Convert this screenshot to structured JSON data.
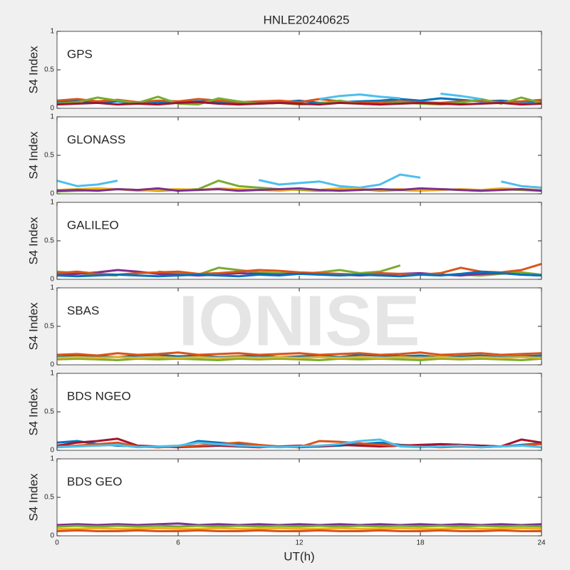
{
  "title": "HNLE20240625",
  "watermark": "IONISE",
  "chart_data": [
    {
      "type": "line",
      "label": "GPS",
      "ylabel": "S4 Index",
      "xlim": [
        0,
        24
      ],
      "xticks": [
        0,
        6,
        12,
        18,
        24
      ],
      "ylim": [
        0,
        1
      ],
      "yticks": [
        0,
        0.5,
        1
      ],
      "x": [
        0,
        1,
        2,
        3,
        4,
        5,
        6,
        7,
        8,
        9,
        10,
        11,
        12,
        13,
        14,
        15,
        16,
        17,
        18,
        19,
        20,
        21,
        22,
        23,
        24
      ],
      "series": [
        {
          "name": "s1",
          "color": "#0072BD",
          "values": [
            0.08,
            0.1,
            0.07,
            0.09,
            0.06,
            0.08,
            0.07,
            0.09,
            0.08,
            0.06,
            0.07,
            0.08,
            0.1,
            0.07,
            0.08,
            0.09,
            0.1,
            0.12,
            0.1,
            0.13,
            0.11,
            0.09,
            0.1,
            0.08,
            0.09
          ]
        },
        {
          "name": "s2",
          "color": "#D95319",
          "values": [
            0.1,
            0.12,
            0.09,
            0.11,
            0.08,
            0.1,
            0.09,
            0.12,
            0.1,
            0.08,
            0.09,
            0.1,
            0.08,
            0.12,
            0.09,
            0.07,
            0.08,
            0.09,
            0.08,
            0.07,
            0.09,
            0.1,
            0.08,
            0.09,
            0.11
          ]
        },
        {
          "name": "s3",
          "color": "#77AC30",
          "values": [
            0.06,
            0.08,
            0.14,
            0.1,
            0.07,
            0.15,
            0.06,
            0.05,
            0.13,
            0.09,
            0.06,
            0.07,
            0.05,
            0.06,
            0.1,
            0.06,
            0.05,
            0.08,
            0.06,
            0.05,
            0.07,
            0.12,
            0.06,
            0.14,
            0.07
          ]
        },
        {
          "name": "s4",
          "color": "#A2142F",
          "values": [
            0.05,
            0.06,
            0.07,
            0.05,
            0.06,
            0.05,
            0.07,
            0.08,
            0.06,
            0.05,
            0.06,
            0.07,
            0.06,
            0.05,
            0.07,
            0.06,
            0.05,
            0.06,
            0.07,
            0.06,
            0.05,
            0.06,
            0.07,
            0.05,
            0.06
          ]
        },
        {
          "name": "s5",
          "color": "#4DBEEE",
          "values": [
            null,
            null,
            null,
            null,
            null,
            null,
            null,
            null,
            null,
            null,
            null,
            null,
            null,
            0.12,
            0.16,
            0.18,
            0.15,
            0.13,
            null,
            0.19,
            0.16,
            0.12,
            null,
            null,
            null
          ]
        }
      ]
    },
    {
      "type": "line",
      "label": "GLONASS",
      "ylabel": "S4 Index",
      "xlim": [
        0,
        24
      ],
      "xticks": [
        0,
        6,
        12,
        18,
        24
      ],
      "ylim": [
        0,
        1
      ],
      "yticks": [
        0,
        0.5,
        1
      ],
      "x": [
        0,
        1,
        2,
        3,
        4,
        5,
        6,
        7,
        8,
        9,
        10,
        11,
        12,
        13,
        14,
        15,
        16,
        17,
        18,
        19,
        20,
        21,
        22,
        23,
        24
      ],
      "series": [
        {
          "name": "s1",
          "color": "#4DBEEE",
          "values": [
            0.17,
            0.1,
            0.12,
            0.17,
            null,
            null,
            null,
            null,
            null,
            null,
            0.18,
            0.12,
            0.14,
            0.16,
            0.1,
            0.08,
            0.12,
            0.25,
            0.21,
            null,
            null,
            null,
            0.16,
            0.1,
            0.08
          ]
        },
        {
          "name": "s2",
          "color": "#77AC30",
          "values": [
            0.03,
            0.04,
            0.05,
            0.06,
            0.05,
            0.04,
            0.05,
            0.06,
            0.17,
            0.1,
            0.08,
            0.06,
            0.05,
            0.04,
            0.05,
            0.06,
            0.04,
            0.05,
            0.04,
            0.06,
            0.05,
            0.04,
            0.06,
            0.05,
            0.04
          ]
        },
        {
          "name": "s3",
          "color": "#EDB120",
          "values": [
            0.05,
            0.06,
            0.07,
            0.06,
            0.04,
            0.05,
            0.06,
            0.05,
            0.07,
            0.06,
            0.05,
            0.04,
            0.06,
            0.05,
            0.07,
            0.06,
            0.05,
            0.06,
            0.04,
            0.05,
            0.06,
            0.05,
            0.07,
            0.06,
            0.05
          ]
        },
        {
          "name": "s4",
          "color": "#7E2F8E",
          "values": [
            0.04,
            0.05,
            0.04,
            0.06,
            0.05,
            0.07,
            0.04,
            0.05,
            0.06,
            0.04,
            0.05,
            0.06,
            0.07,
            0.05,
            0.04,
            0.05,
            0.06,
            0.05,
            0.07,
            0.06,
            0.05,
            0.04,
            0.05,
            0.06,
            0.04
          ]
        }
      ]
    },
    {
      "type": "line",
      "label": "GALILEO",
      "ylabel": "S4 Index",
      "xlim": [
        0,
        24
      ],
      "xticks": [
        0,
        6,
        12,
        18,
        24
      ],
      "ylim": [
        0,
        1
      ],
      "yticks": [
        0,
        0.5,
        1
      ],
      "x": [
        0,
        1,
        2,
        3,
        4,
        5,
        6,
        7,
        8,
        9,
        10,
        11,
        12,
        13,
        14,
        15,
        16,
        17,
        18,
        19,
        20,
        21,
        22,
        23,
        24
      ],
      "series": [
        {
          "name": "s1",
          "color": "#77AC30",
          "values": [
            0.1,
            0.08,
            0.06,
            0.05,
            null,
            0.1,
            0.08,
            0.06,
            0.15,
            0.12,
            0.09,
            0.08,
            0.07,
            0.09,
            0.12,
            0.08,
            0.1,
            0.18,
            null,
            null,
            0.06,
            0.05,
            0.07,
            0.09,
            0.06
          ]
        },
        {
          "name": "s2",
          "color": "#7E2F8E",
          "values": [
            0.06,
            0.07,
            0.09,
            0.12,
            0.1,
            0.07,
            0.06,
            0.05,
            0.06,
            0.08,
            0.07,
            0.06,
            0.08,
            0.07,
            0.06,
            0.05,
            0.06,
            0.07,
            0.08,
            0.06,
            0.05,
            0.07,
            0.08,
            0.06,
            0.05
          ]
        },
        {
          "name": "s3",
          "color": "#D95319",
          "values": [
            0.08,
            0.1,
            0.07,
            0.06,
            0.08,
            0.09,
            0.1,
            0.07,
            0.08,
            0.1,
            0.12,
            0.11,
            0.09,
            0.08,
            0.07,
            0.06,
            0.08,
            0.07,
            0.06,
            0.08,
            0.15,
            0.1,
            0.09,
            0.12,
            0.2
          ]
        },
        {
          "name": "s4",
          "color": "#0072BD",
          "values": [
            0.05,
            0.04,
            0.05,
            0.06,
            0.05,
            0.04,
            0.05,
            0.06,
            0.05,
            0.04,
            0.06,
            0.05,
            0.07,
            0.06,
            0.05,
            0.06,
            0.05,
            0.04,
            0.06,
            0.05,
            0.07,
            0.1,
            0.08,
            0.06,
            0.05
          ]
        }
      ]
    },
    {
      "type": "line",
      "label": "SBAS",
      "ylabel": "S4 Index",
      "xlim": [
        0,
        24
      ],
      "xticks": [
        0,
        6,
        12,
        18,
        24
      ],
      "ylim": [
        0,
        1
      ],
      "yticks": [
        0,
        0.5,
        1
      ],
      "x": [
        0,
        1,
        2,
        3,
        4,
        5,
        6,
        7,
        8,
        9,
        10,
        11,
        12,
        13,
        14,
        15,
        16,
        17,
        18,
        19,
        20,
        21,
        22,
        23,
        24
      ],
      "series": [
        {
          "name": "s1",
          "color": "#0072BD",
          "values": [
            0.1,
            0.12,
            0.11,
            0.1,
            0.12,
            0.13,
            0.11,
            0.12,
            0.1,
            0.11,
            0.12,
            0.1,
            0.11,
            0.12,
            0.1,
            0.13,
            0.12,
            0.11,
            0.12,
            0.1,
            0.11,
            0.12,
            0.1,
            0.11,
            0.12
          ]
        },
        {
          "name": "s2",
          "color": "#D95319",
          "values": [
            0.13,
            0.14,
            0.12,
            0.15,
            0.13,
            0.14,
            0.16,
            0.13,
            0.14,
            0.15,
            0.13,
            0.14,
            0.15,
            0.13,
            0.14,
            0.15,
            0.13,
            0.14,
            0.16,
            0.13,
            0.14,
            0.15,
            0.13,
            0.14,
            0.15
          ]
        },
        {
          "name": "s3",
          "color": "#77AC30",
          "values": [
            0.07,
            0.08,
            0.07,
            0.06,
            0.08,
            0.07,
            0.08,
            0.07,
            0.06,
            0.08,
            0.07,
            0.08,
            0.07,
            0.06,
            0.08,
            0.07,
            0.08,
            0.07,
            0.06,
            0.08,
            0.07,
            0.08,
            0.07,
            0.06,
            0.08
          ]
        },
        {
          "name": "s4",
          "color": "#EDB120",
          "values": [
            0.09,
            0.1,
            0.09,
            0.1,
            0.09,
            0.1,
            0.09,
            0.1,
            0.09,
            0.1,
            0.09,
            0.1,
            0.09,
            0.1,
            0.09,
            0.1,
            0.09,
            0.1,
            0.09,
            0.1,
            0.09,
            0.1,
            0.09,
            0.1,
            0.09
          ]
        }
      ]
    },
    {
      "type": "line",
      "label": "BDS NGEO",
      "ylabel": "S4 Index",
      "xlim": [
        0,
        24
      ],
      "xticks": [
        0,
        6,
        12,
        18,
        24
      ],
      "ylim": [
        0,
        1
      ],
      "yticks": [
        0,
        0.5,
        1
      ],
      "x": [
        0,
        1,
        2,
        3,
        4,
        5,
        6,
        7,
        8,
        9,
        10,
        11,
        12,
        13,
        14,
        15,
        16,
        17,
        18,
        19,
        20,
        21,
        22,
        23,
        24
      ],
      "series": [
        {
          "name": "s1",
          "color": "#0072BD",
          "values": [
            0.1,
            0.12,
            0.08,
            0.06,
            0.05,
            0.04,
            0.05,
            0.12,
            0.1,
            0.08,
            0.06,
            0.05,
            0.04,
            0.05,
            0.06,
            0.08,
            0.1,
            0.07,
            0.06,
            0.08,
            0.07,
            0.06,
            0.05,
            0.07,
            0.09
          ]
        },
        {
          "name": "s2",
          "color": "#A2142F",
          "values": [
            0.06,
            0.1,
            0.12,
            0.15,
            0.06,
            0.05,
            0.04,
            0.05,
            0.06,
            0.05,
            0.04,
            0.05,
            0.06,
            0.05,
            0.07,
            0.06,
            0.05,
            0.06,
            0.07,
            0.08,
            0.07,
            0.06,
            0.05,
            0.14,
            0.1
          ]
        },
        {
          "name": "s3",
          "color": "#D95319",
          "values": [
            0.05,
            0.06,
            0.08,
            0.1,
            0.05,
            0.04,
            0.05,
            0.06,
            0.08,
            0.1,
            0.07,
            0.05,
            0.04,
            0.12,
            0.11,
            0.09,
            0.07,
            0.06,
            0.05,
            0.04,
            0.05,
            0.04,
            0.05,
            0.06,
            0.08
          ]
        },
        {
          "name": "s4",
          "color": "#4DBEEE",
          "values": [
            0.04,
            0.05,
            0.06,
            0.07,
            0.04,
            0.05,
            0.06,
            0.1,
            0.08,
            0.06,
            0.05,
            0.04,
            0.05,
            0.06,
            0.08,
            0.12,
            0.14,
            0.05,
            0.04,
            0.05,
            0.06,
            0.04,
            0.05,
            0.06,
            0.04
          ]
        }
      ]
    },
    {
      "type": "line",
      "label": "BDS GEO",
      "ylabel": "S4 Index",
      "xlabel": "UT(h)",
      "xlim": [
        0,
        24
      ],
      "xticks": [
        0,
        6,
        12,
        18,
        24
      ],
      "ylim": [
        0,
        1
      ],
      "yticks": [
        0,
        0.5,
        1
      ],
      "x": [
        0,
        1,
        2,
        3,
        4,
        5,
        6,
        7,
        8,
        9,
        10,
        11,
        12,
        13,
        14,
        15,
        16,
        17,
        18,
        19,
        20,
        21,
        22,
        23,
        24
      ],
      "series": [
        {
          "name": "s1",
          "color": "#7E2F8E",
          "values": [
            0.14,
            0.15,
            0.14,
            0.15,
            0.14,
            0.15,
            0.16,
            0.14,
            0.15,
            0.14,
            0.15,
            0.14,
            0.15,
            0.14,
            0.15,
            0.14,
            0.15,
            0.14,
            0.15,
            0.14,
            0.15,
            0.14,
            0.15,
            0.14,
            0.15
          ]
        },
        {
          "name": "s2",
          "color": "#77AC30",
          "values": [
            0.12,
            0.13,
            0.12,
            0.13,
            0.12,
            0.13,
            0.12,
            0.13,
            0.12,
            0.13,
            0.12,
            0.13,
            0.12,
            0.13,
            0.12,
            0.13,
            0.12,
            0.13,
            0.12,
            0.13,
            0.12,
            0.13,
            0.12,
            0.13,
            0.12
          ]
        },
        {
          "name": "s3",
          "color": "#EDB120",
          "values": [
            0.09,
            0.09,
            0.1,
            0.09,
            0.09,
            0.1,
            0.09,
            0.09,
            0.1,
            0.09,
            0.09,
            0.1,
            0.09,
            0.09,
            0.1,
            0.09,
            0.09,
            0.1,
            0.09,
            0.09,
            0.1,
            0.09,
            0.09,
            0.1,
            0.09
          ]
        },
        {
          "name": "s4",
          "color": "#D95319",
          "values": [
            0.06,
            0.07,
            0.06,
            0.06,
            0.07,
            0.06,
            0.06,
            0.07,
            0.06,
            0.06,
            0.07,
            0.06,
            0.06,
            0.07,
            0.06,
            0.06,
            0.07,
            0.06,
            0.06,
            0.07,
            0.06,
            0.06,
            0.07,
            0.06,
            0.06
          ]
        }
      ]
    }
  ]
}
